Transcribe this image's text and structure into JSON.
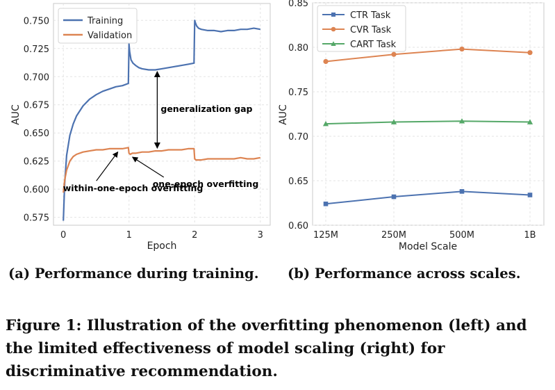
{
  "chart_data": [
    {
      "type": "line",
      "xlabel": "Epoch",
      "ylabel": "AUC",
      "xlim": [
        -0.15,
        3.15
      ],
      "ylim": [
        0.568,
        0.765
      ],
      "xticks": [
        0,
        1,
        2,
        3
      ],
      "yticks": [
        0.575,
        0.6,
        0.625,
        0.65,
        0.675,
        0.7,
        0.725,
        0.75
      ],
      "ytick_labels": [
        "0.575",
        "0.600",
        "0.625",
        "0.650",
        "0.675",
        "0.700",
        "0.725",
        "0.750"
      ],
      "legend_position": "top-left",
      "series": [
        {
          "name": "Training",
          "color": "#4c72b0",
          "x": [
            0,
            0.02,
            0.05,
            0.1,
            0.15,
            0.2,
            0.3,
            0.4,
            0.5,
            0.6,
            0.7,
            0.8,
            0.9,
            0.99,
            1.0,
            1.01,
            1.03,
            1.06,
            1.1,
            1.15,
            1.2,
            1.3,
            1.4,
            1.5,
            1.6,
            1.7,
            1.8,
            1.9,
            1.99,
            2.0,
            2.01,
            2.03,
            2.06,
            2.1,
            2.2,
            2.3,
            2.4,
            2.5,
            2.6,
            2.7,
            2.8,
            2.9,
            3.0
          ],
          "values": [
            0.572,
            0.605,
            0.63,
            0.648,
            0.658,
            0.665,
            0.674,
            0.68,
            0.684,
            0.687,
            0.689,
            0.691,
            0.692,
            0.694,
            0.729,
            0.722,
            0.715,
            0.712,
            0.71,
            0.708,
            0.707,
            0.706,
            0.706,
            0.707,
            0.708,
            0.709,
            0.71,
            0.711,
            0.712,
            0.75,
            0.748,
            0.745,
            0.743,
            0.742,
            0.741,
            0.741,
            0.74,
            0.741,
            0.741,
            0.742,
            0.742,
            0.743,
            0.742
          ]
        },
        {
          "name": "Validation",
          "color": "#dd8452",
          "x": [
            0,
            0.02,
            0.05,
            0.1,
            0.15,
            0.2,
            0.3,
            0.4,
            0.5,
            0.6,
            0.7,
            0.8,
            0.9,
            0.99,
            1.0,
            1.02,
            1.05,
            1.1,
            1.2,
            1.3,
            1.4,
            1.5,
            1.6,
            1.7,
            1.8,
            1.9,
            1.99,
            2.0,
            2.02,
            2.05,
            2.1,
            2.2,
            2.3,
            2.4,
            2.5,
            2.6,
            2.7,
            2.8,
            2.9,
            3.0
          ],
          "values": [
            0.597,
            0.608,
            0.617,
            0.625,
            0.629,
            0.631,
            0.633,
            0.634,
            0.635,
            0.635,
            0.636,
            0.636,
            0.636,
            0.637,
            0.632,
            0.631,
            0.632,
            0.632,
            0.633,
            0.633,
            0.634,
            0.634,
            0.635,
            0.635,
            0.635,
            0.636,
            0.636,
            0.627,
            0.626,
            0.626,
            0.626,
            0.627,
            0.627,
            0.627,
            0.627,
            0.627,
            0.628,
            0.627,
            0.627,
            0.628
          ]
        }
      ],
      "annotations": [
        {
          "text": "generalization gap",
          "arrow": "double-vertical",
          "at_x": 1.43,
          "y_from": 0.707,
          "y_to": 0.634
        },
        {
          "text": "one-epoch overfitting",
          "points_to_x": 1.02,
          "points_to_y": 0.631,
          "text_x": 1.55,
          "text_y": 0.607
        },
        {
          "text": "within-one-epoch overfitting",
          "points_to_x": 0.82,
          "points_to_y": 0.635,
          "text_x": 0.08,
          "text_y": 0.6
        }
      ]
    },
    {
      "type": "line",
      "xlabel": "Model Scale",
      "ylabel": "AUC",
      "categories": [
        "125M",
        "250M",
        "500M",
        "1B"
      ],
      "ylim": [
        0.6,
        0.85
      ],
      "yticks": [
        0.6,
        0.65,
        0.7,
        0.75,
        0.8,
        0.85
      ],
      "ytick_labels": [
        "0.60",
        "0.65",
        "0.70",
        "0.75",
        "0.80",
        "0.85"
      ],
      "legend_position": "top-left",
      "series": [
        {
          "name": "CTR Task",
          "color": "#4c72b0",
          "marker": "square",
          "values": [
            0.624,
            0.632,
            0.638,
            0.634
          ]
        },
        {
          "name": "CVR Task",
          "color": "#dd8452",
          "marker": "circle",
          "values": [
            0.784,
            0.792,
            0.798,
            0.794
          ]
        },
        {
          "name": "CART Task",
          "color": "#55a868",
          "marker": "triangle",
          "values": [
            0.714,
            0.716,
            0.717,
            0.716
          ]
        }
      ]
    }
  ],
  "captions": {
    "sub_a": "(a) Performance during training.",
    "sub_b": "(b) Performance across scales.",
    "figure": "Figure 1: Illustration of the overfitting phenomenon (left) and the limited effectiveness of model scaling (right) for discriminative recommendation."
  }
}
